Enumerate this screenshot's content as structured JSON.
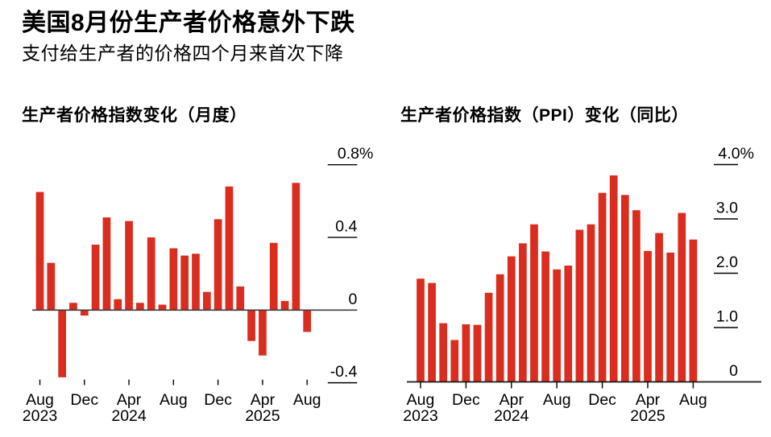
{
  "header": {
    "title": "美国8月份生产者价格意外下跌",
    "subtitle": "支付给生产者的价格四个月来首次下降"
  },
  "colors": {
    "bar": "#da2c1f",
    "axis": "#000000",
    "zero_line": "#3d3d3d",
    "background": "#ffffff"
  },
  "chart_data": [
    {
      "type": "bar",
      "title": "生产者价格指数变化（月度）",
      "unit": "percent, month-over-month",
      "categories": [
        "Aug 2023",
        "Sep 2023",
        "Oct 2023",
        "Nov 2023",
        "Dec 2023",
        "Jan 2024",
        "Feb 2024",
        "Mar 2024",
        "Apr 2024",
        "May 2024",
        "Jun 2024",
        "Jul 2024",
        "Aug 2024",
        "Sep 2024",
        "Oct 2024",
        "Nov 2024",
        "Dec 2024",
        "Jan 2025",
        "Feb 2025",
        "Mar 2025",
        "Apr 2025",
        "May 2025",
        "Jun 2025",
        "Jul 2025",
        "Aug 2025"
      ],
      "values": [
        0.65,
        0.26,
        -0.37,
        0.04,
        -0.03,
        0.36,
        0.51,
        0.06,
        0.49,
        0.04,
        0.4,
        0.03,
        0.34,
        0.3,
        0.31,
        0.1,
        0.5,
        0.68,
        0.13,
        -0.17,
        -0.25,
        0.37,
        0.05,
        0.7,
        -0.12
      ],
      "ylim": [
        -0.45,
        0.95
      ],
      "grid": false,
      "legend": null,
      "yticks": [
        {
          "value": 0.8,
          "label": "0.8%"
        },
        {
          "value": 0.4,
          "label": "0.4"
        },
        {
          "value": 0,
          "label": "0"
        },
        {
          "value": -0.4,
          "label": "-0.4"
        }
      ],
      "xticks": [
        {
          "index": 0,
          "label": "Aug",
          "year": "2023"
        },
        {
          "index": 4,
          "label": "Dec"
        },
        {
          "index": 8,
          "label": "Apr",
          "year": "2024"
        },
        {
          "index": 12,
          "label": "Aug"
        },
        {
          "index": 16,
          "label": "Dec"
        },
        {
          "index": 20,
          "label": "Apr",
          "year": "2025"
        },
        {
          "index": 24,
          "label": "Aug"
        }
      ]
    },
    {
      "type": "bar",
      "title": "生产者价格指数（PPI）变化（同比）",
      "unit": "percent, year-over-year",
      "categories": [
        "Aug 2023",
        "Sep 2023",
        "Oct 2023",
        "Nov 2023",
        "Dec 2023",
        "Jan 2024",
        "Feb 2024",
        "Mar 2024",
        "Apr 2024",
        "May 2024",
        "Jun 2024",
        "Jul 2024",
        "Aug 2024",
        "Sep 2024",
        "Oct 2024",
        "Nov 2024",
        "Dec 2024",
        "Jan 2025",
        "Feb 2025",
        "Mar 2025",
        "Apr 2025",
        "May 2025",
        "Jun 2025",
        "Jul 2025",
        "Aug 2025"
      ],
      "values": [
        1.9,
        1.82,
        1.08,
        0.77,
        1.06,
        1.05,
        1.64,
        1.98,
        2.31,
        2.55,
        2.9,
        2.4,
        2.07,
        2.14,
        2.8,
        2.9,
        3.48,
        3.8,
        3.44,
        3.16,
        2.41,
        2.74,
        2.38,
        3.11,
        2.62
      ],
      "ylim": [
        0,
        4.3
      ],
      "grid": false,
      "legend": null,
      "yticks": [
        {
          "value": 4.0,
          "label": "4.0%"
        },
        {
          "value": 3.0,
          "label": "3.0"
        },
        {
          "value": 2.0,
          "label": "2.0"
        },
        {
          "value": 1.0,
          "label": "1.0"
        },
        {
          "value": 0,
          "label": "0"
        }
      ],
      "xticks": [
        {
          "index": 0,
          "label": "Aug",
          "year": "2023"
        },
        {
          "index": 4,
          "label": "Dec"
        },
        {
          "index": 8,
          "label": "Apr",
          "year": "2024"
        },
        {
          "index": 12,
          "label": "Aug"
        },
        {
          "index": 16,
          "label": "Dec"
        },
        {
          "index": 20,
          "label": "Apr",
          "year": "2025"
        },
        {
          "index": 24,
          "label": "Aug"
        }
      ]
    }
  ]
}
